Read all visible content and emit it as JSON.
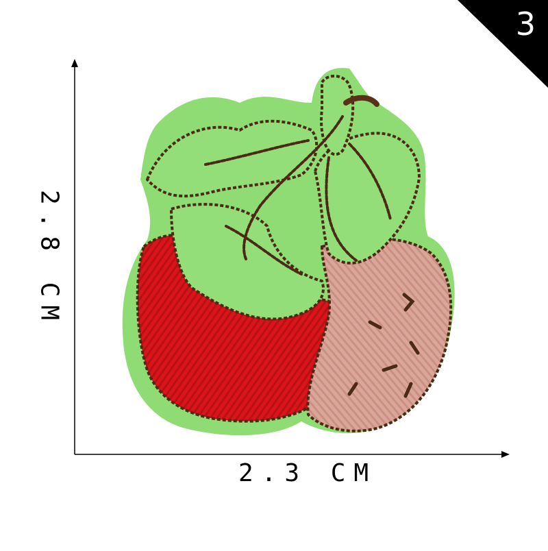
{
  "badge": {
    "number": "3",
    "color": "#000000"
  },
  "dimensions": {
    "width_label": "2.3 CM",
    "height_label": "2.8 CM"
  },
  "image": {
    "subject": "embroidered-strawberry-patch",
    "colors": {
      "felt": "#8fdc74",
      "leaf": "#93de79",
      "stitch": "#4a2a14",
      "red_berry": "#d8151b",
      "pink_berry": "#dba69a"
    }
  }
}
